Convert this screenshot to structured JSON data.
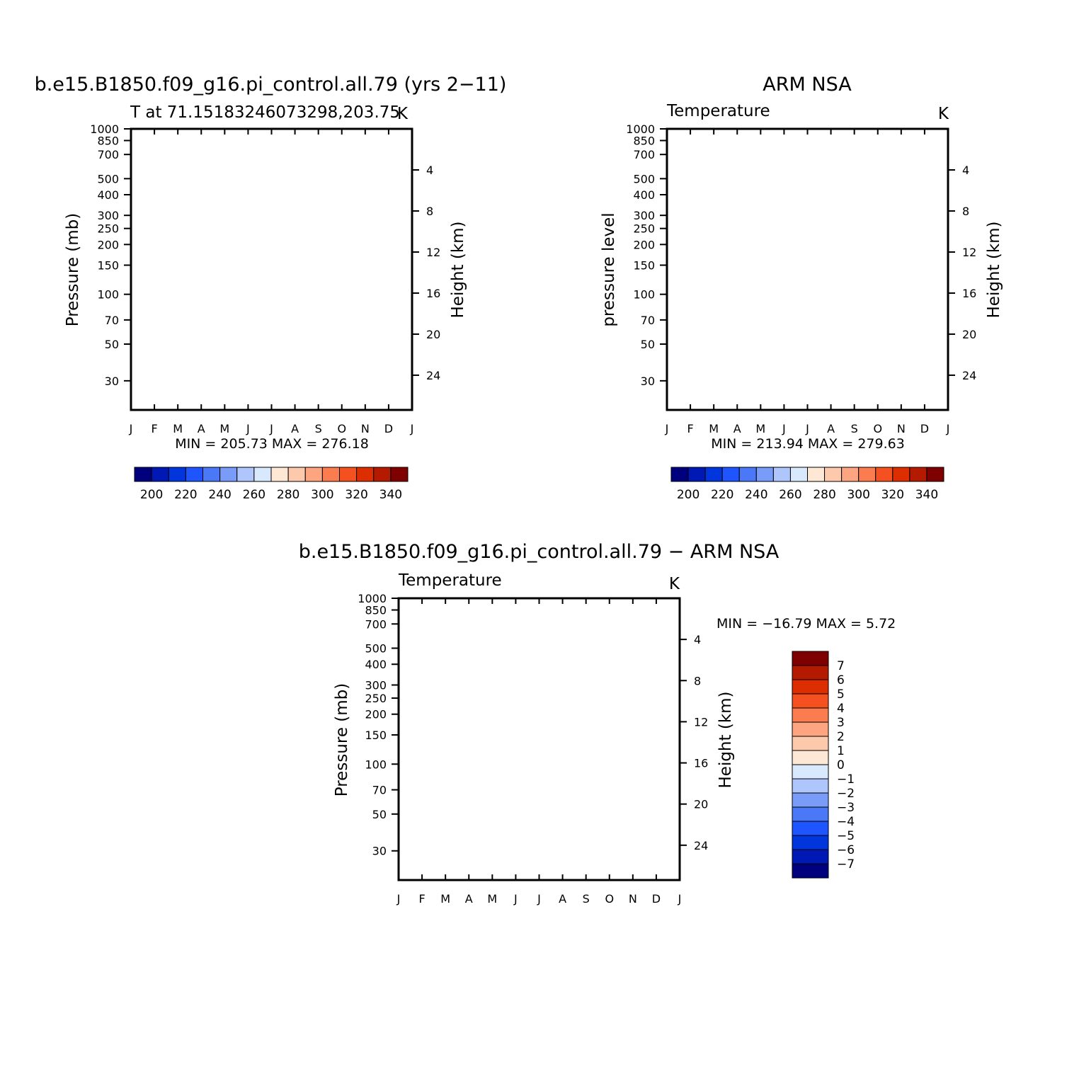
{
  "chart_data": [
    {
      "type": "heatmap",
      "title": "b.e15.B1850.f09_g16.pi_control.all.79 (yrs 2−11)",
      "subtitle": "T at 71.15183246073298,203.75",
      "units": "K",
      "ylabel": "Pressure (mb)",
      "right_ylabel": "Height (km)",
      "x_categories": [
        "J",
        "F",
        "M",
        "A",
        "M",
        "J",
        "J",
        "A",
        "S",
        "O",
        "N",
        "D",
        "J"
      ],
      "y_ticks": [
        30,
        50,
        70,
        100,
        150,
        200,
        250,
        300,
        400,
        500,
        700,
        850,
        1000
      ],
      "height_ticks": [
        4,
        8,
        12,
        16,
        20,
        24
      ],
      "ylim": [
        1000,
        20
      ],
      "y_scale": "log",
      "stats": "MIN = 205.73  MAX = 276.18",
      "colorbar": {
        "orientation": "horizontal",
        "tick_labels": [
          "200",
          "220",
          "240",
          "260",
          "280",
          "300",
          "320",
          "340"
        ],
        "levels": [
          195,
          200,
          205,
          210,
          215,
          220,
          225,
          230,
          235,
          240,
          245,
          250,
          255,
          260,
          265,
          270,
          275,
          280,
          285,
          290,
          295,
          300,
          305,
          310,
          315,
          320,
          325,
          330,
          335,
          340,
          345
        ]
      }
    },
    {
      "type": "heatmap",
      "title": "ARM NSA",
      "subtitle": "Temperature",
      "units": "K",
      "ylabel": "pressure level",
      "right_ylabel": "Height (km)",
      "x_categories": [
        "J",
        "F",
        "M",
        "A",
        "M",
        "J",
        "J",
        "A",
        "S",
        "O",
        "N",
        "D",
        "J"
      ],
      "y_ticks": [
        30,
        50,
        70,
        100,
        150,
        200,
        250,
        300,
        400,
        500,
        700,
        850,
        1000
      ],
      "height_ticks": [
        4,
        8,
        12,
        16,
        20,
        24
      ],
      "ylim": [
        1000,
        20
      ],
      "y_scale": "log",
      "stats": "MIN = 213.94  MAX = 279.63",
      "colorbar": {
        "orientation": "horizontal",
        "tick_labels": [
          "200",
          "220",
          "240",
          "260",
          "280",
          "300",
          "320",
          "340"
        ]
      }
    },
    {
      "type": "heatmap",
      "title": "b.e15.B1850.f09_g16.pi_control.all.79 − ARM NSA",
      "subtitle": "Temperature",
      "units": "K",
      "ylabel": "Pressure (mb)",
      "right_ylabel": "Height (km)",
      "x_categories": [
        "J",
        "F",
        "M",
        "A",
        "M",
        "J",
        "J",
        "A",
        "S",
        "O",
        "N",
        "D",
        "J"
      ],
      "y_ticks": [
        30,
        50,
        70,
        100,
        150,
        200,
        250,
        300,
        400,
        500,
        700,
        850,
        1000
      ],
      "height_ticks": [
        4,
        8,
        12,
        16,
        20,
        24
      ],
      "ylim": [
        1000,
        20
      ],
      "y_scale": "log",
      "stats": "MIN = −16.79  MAX =    5.72",
      "colorbar": {
        "orientation": "vertical",
        "tick_labels": [
          "7",
          "6",
          "5",
          "4",
          "3",
          "2",
          "1",
          "0",
          "−1",
          "−2",
          "−3",
          "−4",
          "−5",
          "−6",
          "−7"
        ]
      }
    }
  ],
  "palette": [
    "#00007f",
    "#0019b4",
    "#0036dc",
    "#1f55ff",
    "#4a78f6",
    "#789cf8",
    "#aec6fb",
    "#d8e8fd",
    "#fde8d5",
    "#fcc9ac",
    "#fca580",
    "#fb7d4f",
    "#f5501f",
    "#dc2e00",
    "#b41a00",
    "#7f0000"
  ],
  "diff_palette": [
    "#00007f",
    "#0019b4",
    "#0036dc",
    "#1f55ff",
    "#4a78f6",
    "#789cf8",
    "#aec6fb",
    "#d8e8fd",
    "#fde8d5",
    "#fcc9ac",
    "#fca580",
    "#fb7d4f",
    "#f5501f",
    "#dc2e00",
    "#b41a00",
    "#7f0000"
  ]
}
